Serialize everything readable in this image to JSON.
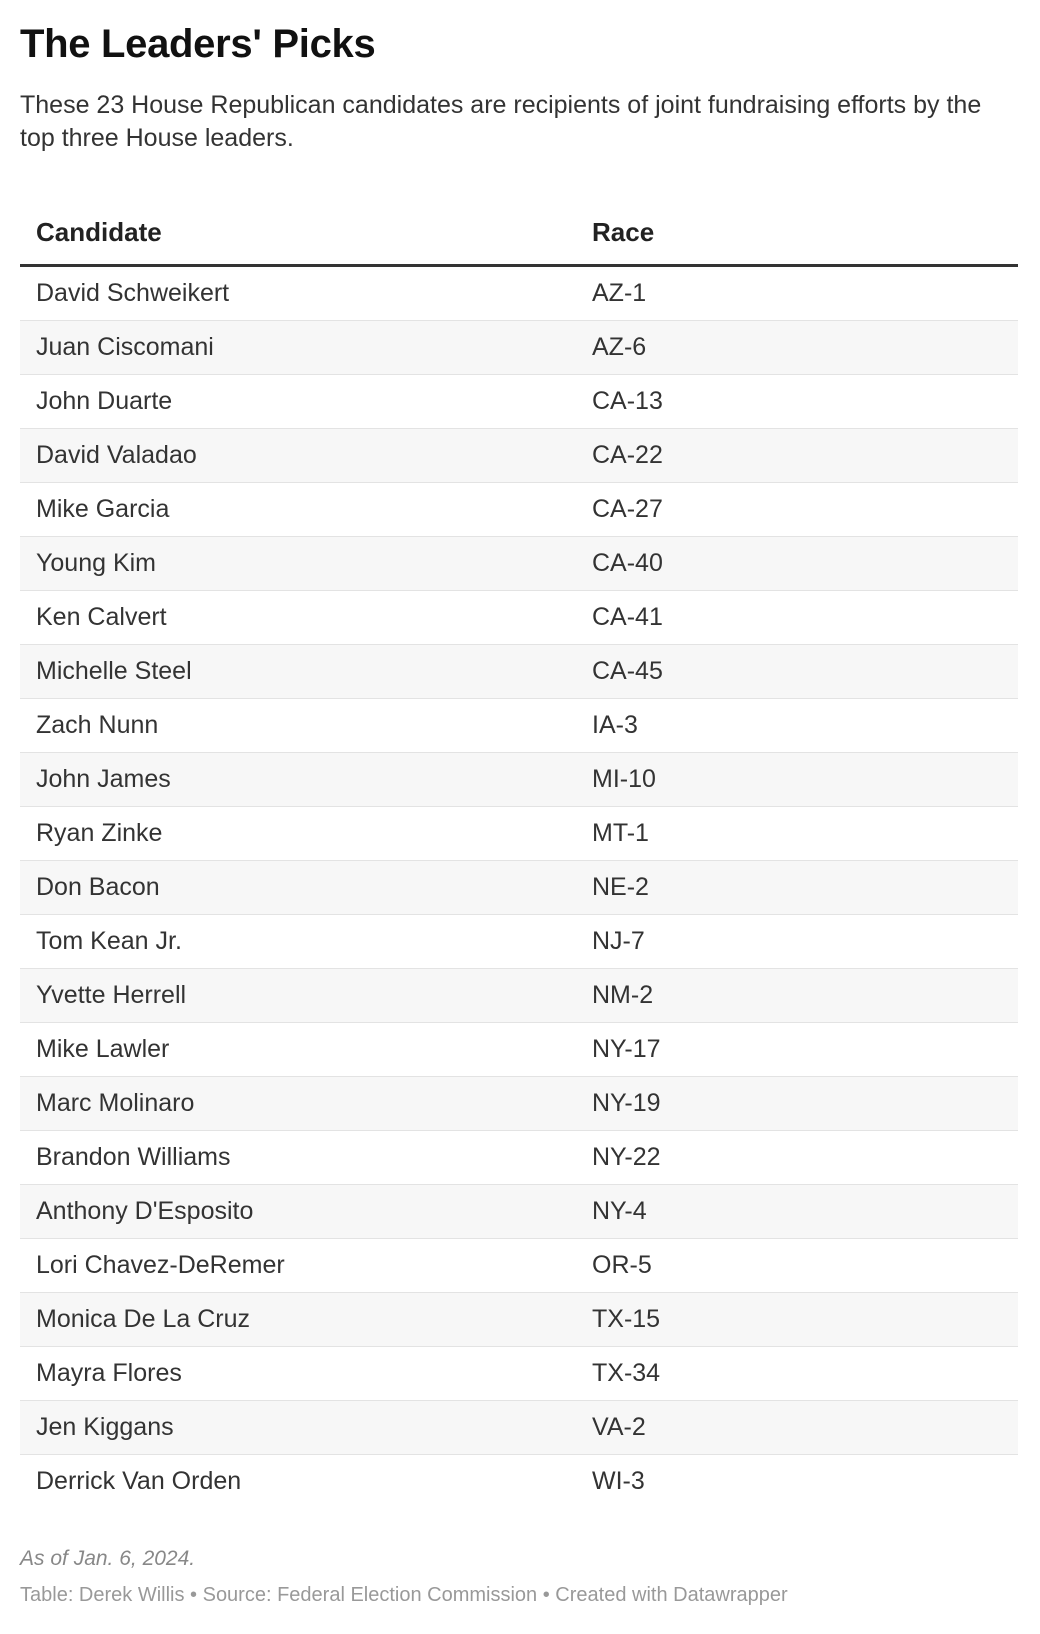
{
  "title": "The Leaders' Picks",
  "subtitle": "These 23 House Republican candidates are recipients of joint fundraising efforts by the top three House leaders.",
  "chart_data": {
    "type": "table",
    "columns": [
      "Candidate",
      "Race"
    ],
    "rows": [
      [
        "David Schweikert",
        "AZ-1"
      ],
      [
        "Juan Ciscomani",
        "AZ-6"
      ],
      [
        "John Duarte",
        "CA-13"
      ],
      [
        "David Valadao",
        "CA-22"
      ],
      [
        "Mike Garcia",
        "CA-27"
      ],
      [
        "Young Kim",
        "CA-40"
      ],
      [
        "Ken Calvert",
        "CA-41"
      ],
      [
        "Michelle Steel",
        "CA-45"
      ],
      [
        "Zach Nunn",
        "IA-3"
      ],
      [
        "John James",
        "MI-10"
      ],
      [
        "Ryan Zinke",
        "MT-1"
      ],
      [
        "Don Bacon",
        "NE-2"
      ],
      [
        "Tom Kean Jr.",
        "NJ-7"
      ],
      [
        "Yvette Herrell",
        "NM-2"
      ],
      [
        "Mike Lawler",
        "NY-17"
      ],
      [
        "Marc Molinaro",
        "NY-19"
      ],
      [
        "Brandon Williams",
        "NY-22"
      ],
      [
        "Anthony D'Esposito",
        "NY-4"
      ],
      [
        "Lori Chavez-DeRemer",
        "OR-5"
      ],
      [
        "Monica De La Cruz",
        "TX-15"
      ],
      [
        "Mayra Flores",
        "TX-34"
      ],
      [
        "Jen Kiggans",
        "VA-2"
      ],
      [
        "Derrick Van Orden",
        "WI-3"
      ]
    ]
  },
  "footer": {
    "note": "As of Jan. 6, 2024.",
    "source": "Table: Derek Willis • Source: Federal Election Commission • Created with Datawrapper"
  }
}
